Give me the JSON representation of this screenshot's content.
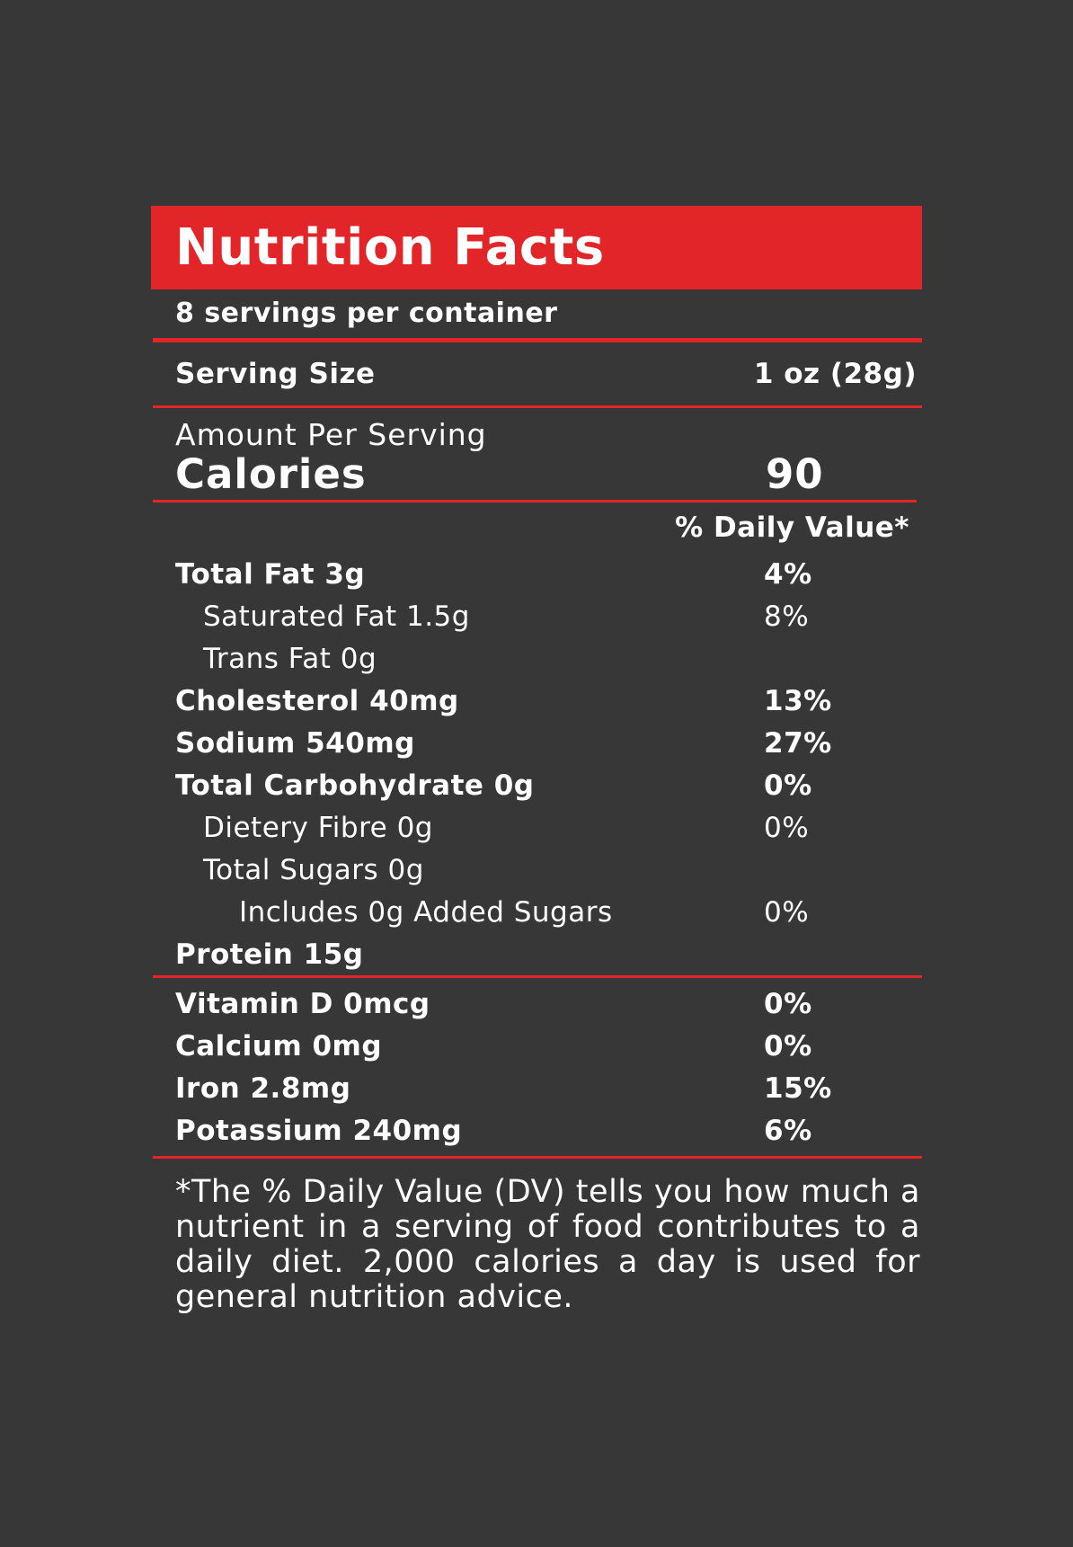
{
  "header": {
    "title": "Nutrition Facts",
    "servings": "8 servings per container"
  },
  "serving_size": {
    "label": "Serving Size",
    "value": "1 oz (28g)"
  },
  "amount": {
    "label": "Amount Per Serving",
    "calories_label": "Calories",
    "calories_value": "90"
  },
  "daily_value_header": "% Daily Value*",
  "nutrients": [
    {
      "name": "Total Fat 3g",
      "percent": "4%"
    },
    {
      "name": "Saturated Fat 1.5g",
      "percent": "8%"
    },
    {
      "name": "Trans Fat 0g",
      "percent": ""
    },
    {
      "name": "Cholesterol 40mg",
      "percent": "13%"
    },
    {
      "name": "Sodium 540mg",
      "percent": "27%"
    },
    {
      "name": "Total Carbohydrate 0g",
      "percent": "0%"
    },
    {
      "name": "Dietery Fibre 0g",
      "percent": "0%"
    },
    {
      "name": "Total Sugars 0g",
      "percent": ""
    },
    {
      "name": "Includes 0g Added Sugars",
      "percent": "0%"
    },
    {
      "name": "Protein 15g",
      "percent": ""
    }
  ],
  "vitamins": [
    {
      "name": "Vitamin D 0mcg",
      "percent": "0%"
    },
    {
      "name": "Calcium 0mg",
      "percent": "0%"
    },
    {
      "name": "Iron 2.8mg",
      "percent": "15%"
    },
    {
      "name": "Potassium 240mg",
      "percent": "6%"
    }
  ],
  "footnote": "*The % Daily Value (DV) tells you how much a nutrient in a serving of food contributes to a daily diet. 2,000 calories a day is used for general nutrition advice.",
  "colors": {
    "background": "#373737",
    "accent": "#e12528",
    "text": "#ffffff"
  }
}
